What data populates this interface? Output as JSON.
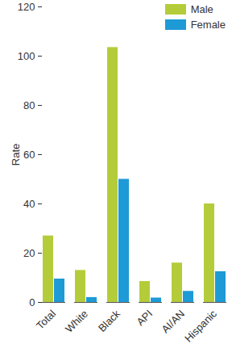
{
  "chart_data": {
    "type": "bar",
    "y_label": "Rate",
    "categories": [
      "Total",
      "White",
      "Black",
      "API",
      "AI/AN",
      "Hispanic"
    ],
    "series": [
      {
        "name": "Male",
        "color": "#b5cc3a",
        "values": [
          27,
          13,
          103.5,
          8.5,
          16,
          40
        ]
      },
      {
        "name": "Female",
        "color": "#1e9ad6",
        "values": [
          9.5,
          2,
          50,
          1.8,
          4.5,
          12.5
        ]
      }
    ],
    "ylim": [
      0,
      120
    ],
    "yticks": [
      0,
      20,
      40,
      60,
      80,
      100,
      120
    ],
    "grid": false,
    "legend": "top-right"
  }
}
